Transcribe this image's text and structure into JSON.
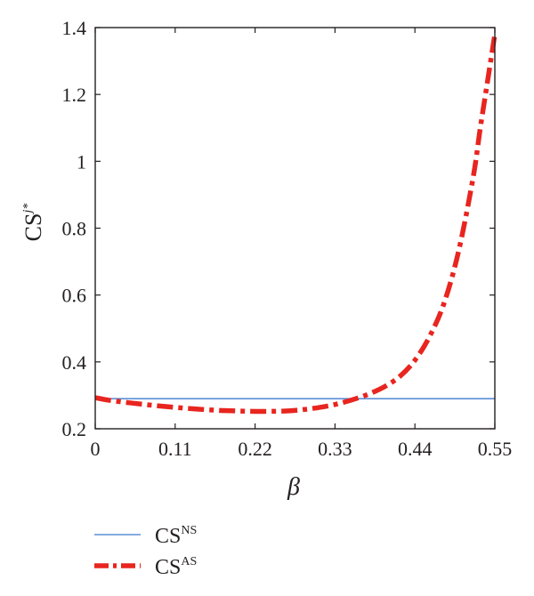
{
  "chart_data": {
    "type": "line",
    "xlabel": "β",
    "ylabel": {
      "base": "CS",
      "sup": "j*"
    },
    "xlim": [
      0,
      0.55
    ],
    "ylim": [
      0.2,
      1.4
    ],
    "xticks": [
      0,
      0.11,
      0.22,
      0.33,
      0.44,
      0.55
    ],
    "xtick_labels": [
      "0",
      "0.11",
      "0.22",
      "0.33",
      "0.44",
      "0.55"
    ],
    "yticks": [
      0.2,
      0.4,
      0.6,
      0.8,
      1.0,
      1.2,
      1.4
    ],
    "ytick_labels": [
      "0.2",
      "0.4",
      "0.6",
      "0.8",
      "1",
      "1.2",
      "1.4"
    ],
    "grid": false,
    "legend_position": "bottom-left, below plot",
    "series": [
      {
        "name": {
          "base": "CS",
          "sup": "NS"
        },
        "color": "#5b8fd6",
        "style": "solid",
        "x": [
          0,
          0.55
        ],
        "y": [
          0.29,
          0.29
        ]
      },
      {
        "name": {
          "base": "CS",
          "sup": "AS"
        },
        "color": "#e8251f",
        "style": "dash-dot",
        "x": [
          0,
          0.02,
          0.05,
          0.08,
          0.11,
          0.14,
          0.17,
          0.2,
          0.22,
          0.24,
          0.26,
          0.28,
          0.3,
          0.32,
          0.34,
          0.36,
          0.38,
          0.4,
          0.42,
          0.44,
          0.46,
          0.48,
          0.5,
          0.52,
          0.53,
          0.54,
          0.55
        ],
        "y": [
          0.293,
          0.285,
          0.277,
          0.27,
          0.264,
          0.259,
          0.255,
          0.253,
          0.252,
          0.252,
          0.253,
          0.256,
          0.261,
          0.268,
          0.278,
          0.291,
          0.307,
          0.328,
          0.358,
          0.405,
          0.475,
          0.575,
          0.73,
          0.95,
          1.1,
          1.24,
          1.38
        ]
      }
    ]
  }
}
